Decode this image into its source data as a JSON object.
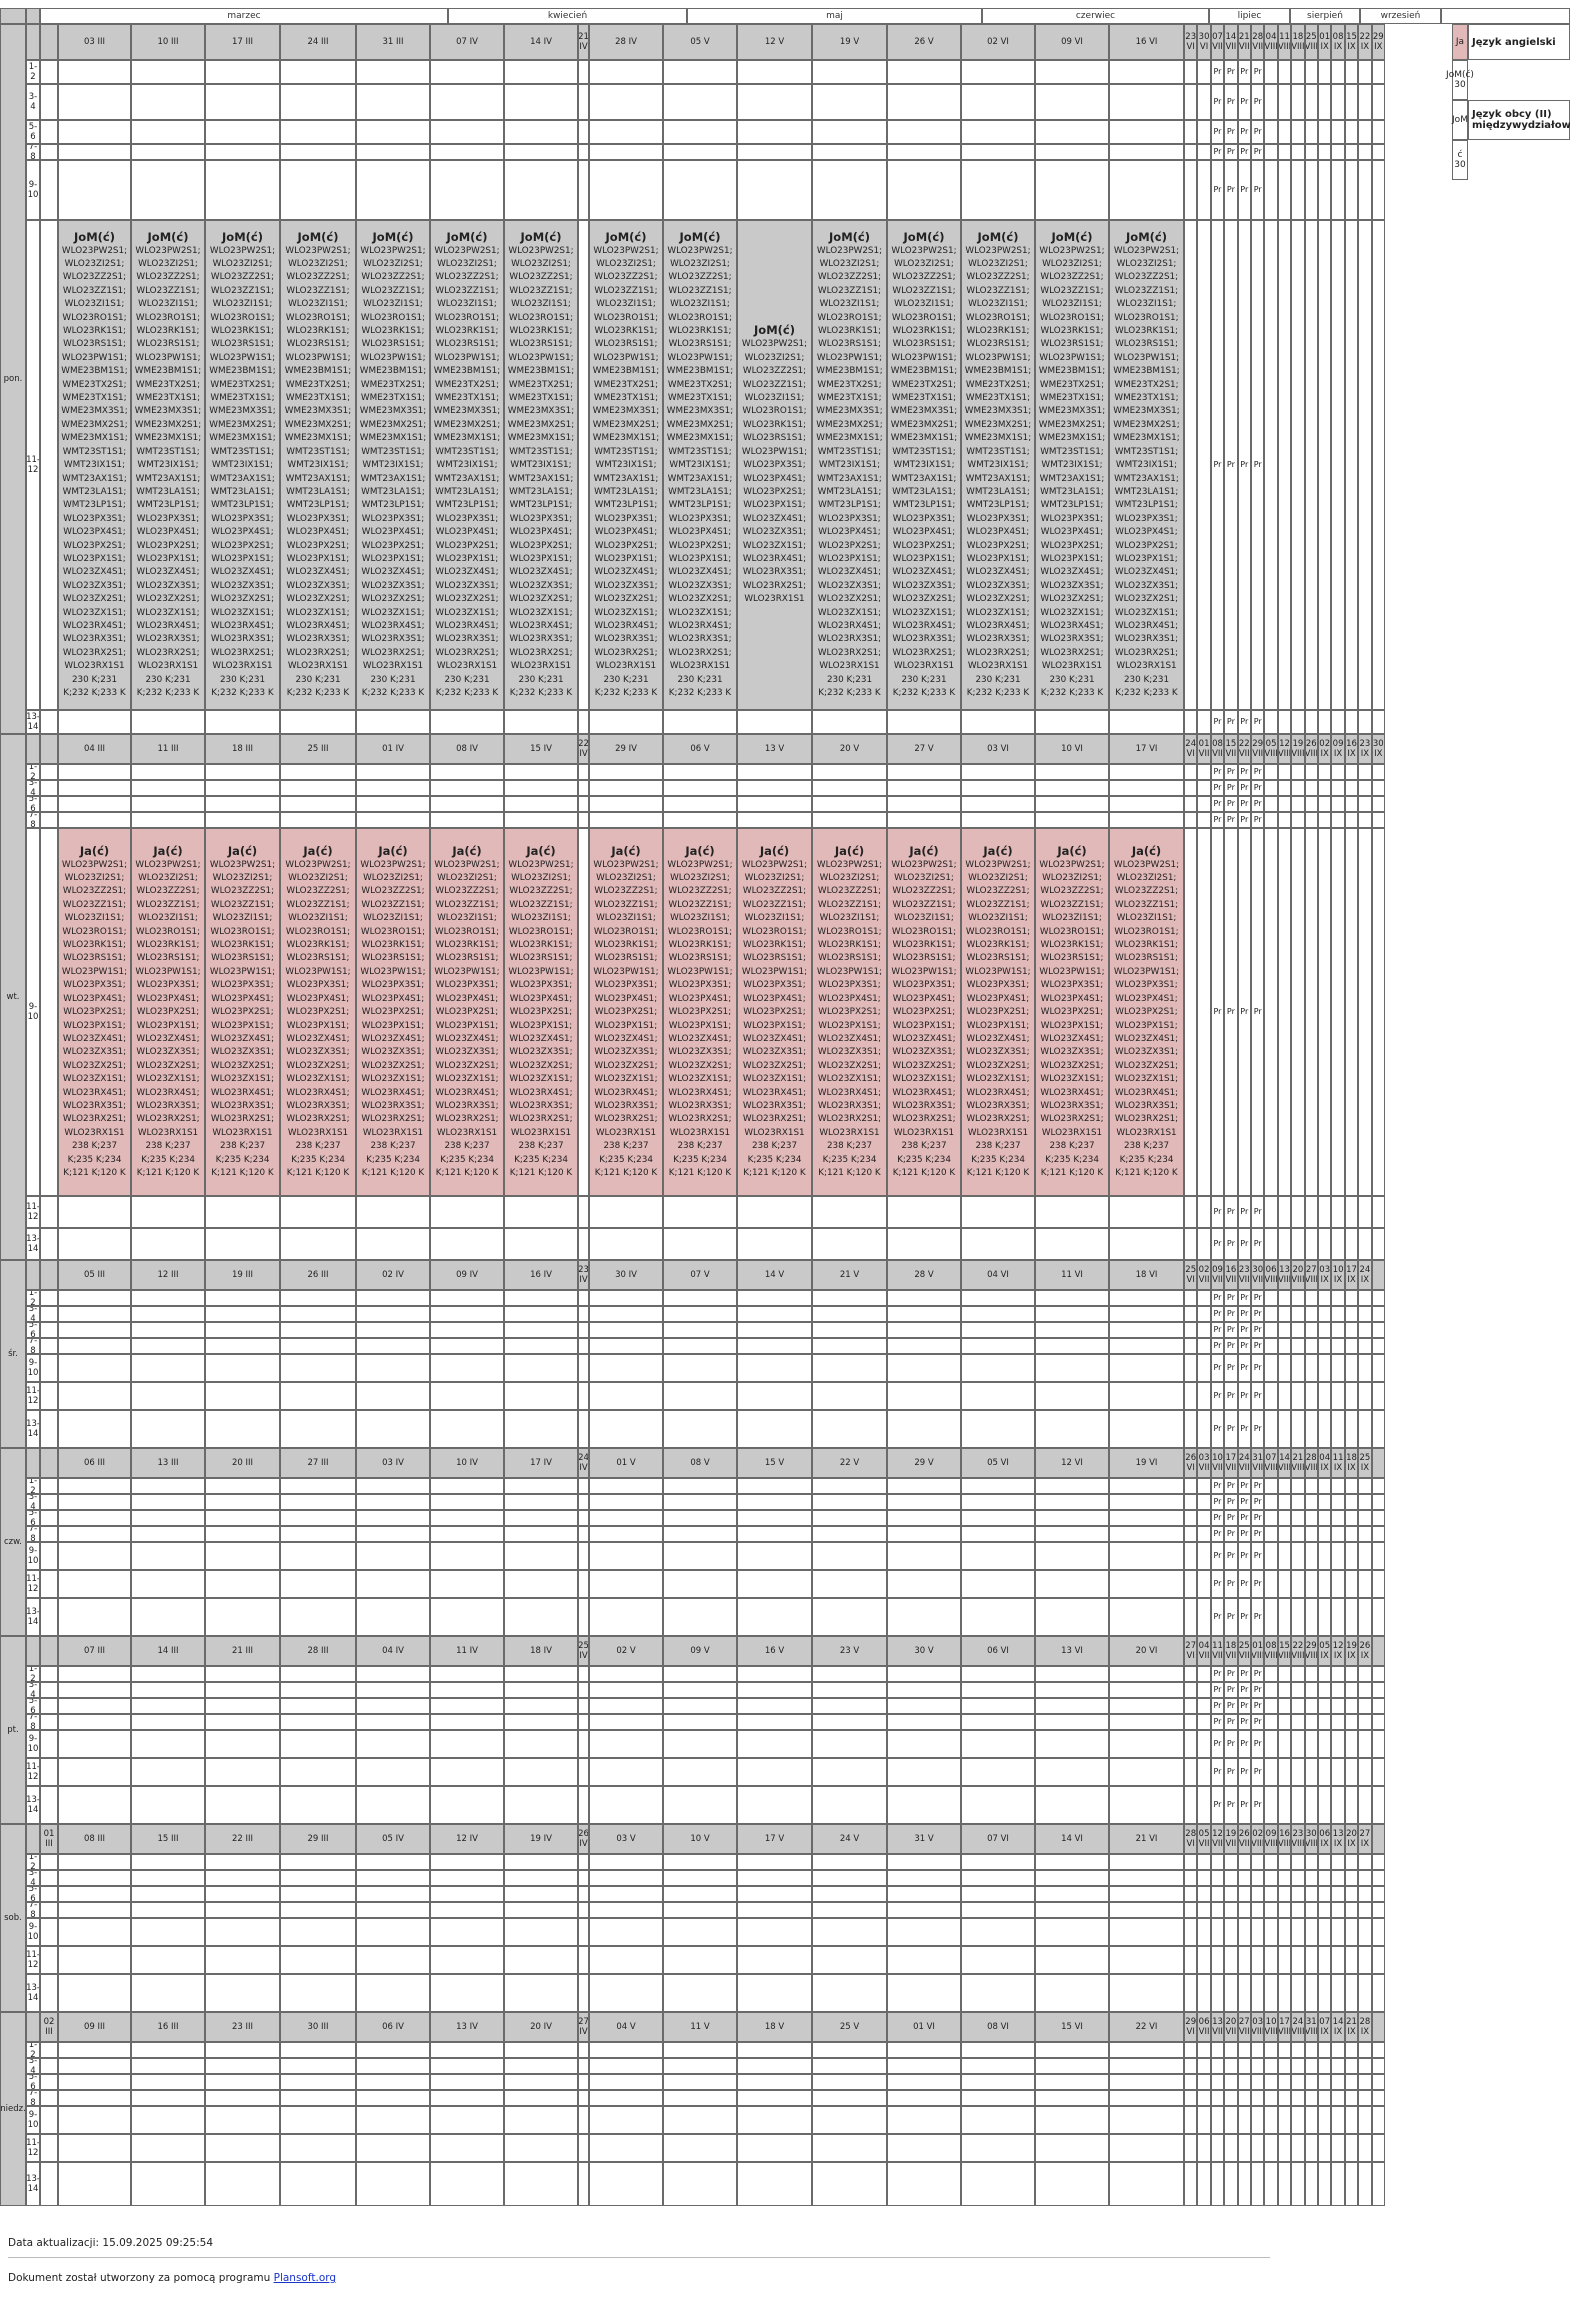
{
  "months": [
    "marzec",
    "kwiecień",
    "maj",
    "czerwiec",
    "lipiec",
    "sierpień",
    "wrzesień"
  ],
  "day_labels": [
    "pon.",
    "wt.",
    "śr.",
    "czw.",
    "pt.",
    "sob.",
    "niedz."
  ],
  "slot_labels": [
    "1-2",
    "3-4",
    "5-6",
    "7-8",
    "9-10",
    "11-12",
    "13-14"
  ],
  "days": [
    {
      "main": [
        "03 III",
        "10 III",
        "17 III",
        "24 III",
        "31 III",
        "07 IV",
        "14 IV",
        "21 IV",
        "28 IV",
        "05 V",
        "12 V",
        "19 V",
        "26 V",
        "02 VI",
        "09 VI",
        "16 VI"
      ],
      "summer": [
        "23 VI",
        "30 VI",
        "07 VII",
        "14 VII",
        "21 VII",
        "28 VII",
        "04 VIII",
        "11 VIII",
        "18 VIII",
        "25 VIII",
        "01 IX",
        "08 IX",
        "15 IX",
        "22 IX",
        "29 IX"
      ]
    },
    {
      "main": [
        "04 III",
        "11 III",
        "18 III",
        "25 III",
        "01 IV",
        "08 IV",
        "15 IV",
        "22 IV",
        "29 IV",
        "06 V",
        "13 V",
        "20 V",
        "27 V",
        "03 VI",
        "10 VI",
        "17 VI"
      ],
      "summer": [
        "24 VI",
        "01 VII",
        "08 VII",
        "15 VII",
        "22 VII",
        "29 VII",
        "05 VIII",
        "12 VIII",
        "19 VIII",
        "26 VIII",
        "02 IX",
        "09 IX",
        "16 IX",
        "23 IX",
        "30 IX"
      ]
    },
    {
      "main": [
        "05 III",
        "12 III",
        "19 III",
        "26 III",
        "02 IV",
        "09 IV",
        "16 IV",
        "23 IV",
        "30 IV",
        "07 V",
        "14 V",
        "21 V",
        "28 V",
        "04 VI",
        "11 VI",
        "18 VI"
      ],
      "summer": [
        "25 VI",
        "02 VII",
        "09 VII",
        "16 VII",
        "23 VII",
        "30 VII",
        "06 VIII",
        "13 VIII",
        "20 VIII",
        "27 VIII",
        "03 IX",
        "10 IX",
        "17 IX",
        "24 IX"
      ]
    },
    {
      "main": [
        "06 III",
        "13 III",
        "20 III",
        "27 III",
        "03 IV",
        "10 IV",
        "17 IV",
        "24 IV",
        "01 V",
        "08 V",
        "15 V",
        "22 V",
        "29 V",
        "05 VI",
        "12 VI",
        "19 VI"
      ],
      "summer": [
        "26 VI",
        "03 VII",
        "10 VII",
        "17 VII",
        "24 VII",
        "31 VII",
        "07 VIII",
        "14 VIII",
        "21 VIII",
        "28 VIII",
        "04 IX",
        "11 IX",
        "18 IX",
        "25 IX"
      ]
    },
    {
      "main": [
        "07 III",
        "14 III",
        "21 III",
        "28 III",
        "04 IV",
        "11 IV",
        "18 IV",
        "25 IV",
        "02 V",
        "09 V",
        "16 V",
        "23 V",
        "30 V",
        "06 VI",
        "13 VI",
        "20 VI"
      ],
      "summer": [
        "27 VI",
        "04 VII",
        "11 VII",
        "18 VII",
        "25 VII",
        "01 VIII",
        "08 VIII",
        "15 VIII",
        "22 VIII",
        "29 VIII",
        "05 IX",
        "12 IX",
        "19 IX",
        "26 IX"
      ]
    },
    {
      "lead": "01 III",
      "main": [
        "08 III",
        "15 III",
        "22 III",
        "29 III",
        "05 IV",
        "12 IV",
        "19 IV",
        "26 IV",
        "03 V",
        "10 V",
        "17 V",
        "24 V",
        "31 V",
        "07 VI",
        "14 VI",
        "21 VI"
      ],
      "summer": [
        "28 VI",
        "05 VII",
        "12 VII",
        "19 VII",
        "26 VII",
        "02 VIII",
        "09 VIII",
        "16 VIII",
        "23 VIII",
        "30 VIII",
        "06 IX",
        "13 IX",
        "20 IX",
        "27 IX"
      ]
    },
    {
      "lead": "02 III",
      "main": [
        "09 III",
        "16 III",
        "23 III",
        "30 III",
        "06 IV",
        "13 IV",
        "20 IV",
        "27 IV",
        "04 V",
        "11 V",
        "18 V",
        "25 V",
        "01 VI",
        "08 VI",
        "15 VI",
        "22 VI"
      ],
      "summer": [
        "29 VI",
        "06 VII",
        "13 VII",
        "20 VII",
        "27 VII",
        "03 VIII",
        "10 VIII",
        "17 VIII",
        "24 VIII",
        "31 VIII",
        "07 IX",
        "14 IX",
        "21 IX",
        "28 IX"
      ]
    }
  ],
  "pr_label": "Pr",
  "lessons": {
    "jom": {
      "title": "JoM(ć)",
      "groups": [
        "WLO23PW2S1;",
        "WLO23ZI2S1;",
        "WLO23ZZ2S1;",
        "WLO23ZZ1S1;",
        "WLO23ZI1S1;",
        "WLO23RO1S1;",
        "WLO23RK1S1;",
        "WLO23RS1S1;",
        "WLO23PW1S1;",
        "WME23BM1S1;",
        "WME23TX2S1;",
        "WME23TX1S1;",
        "WME23MX3S1;",
        "WME23MX2S1;",
        "WME23MX1S1;",
        "WMT23ST1S1;",
        "WMT23IX1S1;",
        "WMT23AX1S1;",
        "WMT23LA1S1;",
        "WMT23LP1S1;",
        "WLO23PX3S1;",
        "WLO23PX4S1;",
        "WLO23PX2S1;",
        "WLO23PX1S1;",
        "WLO23ZX4S1;",
        "WLO23ZX3S1;",
        "WLO23ZX2S1;",
        "WLO23ZX1S1;",
        "WLO23RX4S1;",
        "WLO23RX3S1;",
        "WLO23RX2S1;",
        "WLO23RX1S1"
      ],
      "rooms": [
        "230 K;231 K;232 K;233 K"
      ],
      "short_groups": [
        "WLO23PW2S1;",
        "WLO23ZI2S1;",
        "WLO23ZZ2S1;",
        "WLO23ZZ1S1;",
        "WLO23ZI1S1;",
        "WLO23RO1S1;",
        "WLO23RK1S1;",
        "WLO23RS1S1;",
        "WLO23PW1S1;",
        "WLO23PX3S1;",
        "WLO23PX4S1;",
        "WLO23PX2S1;",
        "WLO23PX1S1;",
        "WLO23ZX4S1;",
        "WLO23ZX3S1;",
        "WLO23ZX1S1;",
        "WLO23RX4S1;",
        "WLO23RX3S1;",
        "WLO23RX2S1;",
        "WLO23RX1S1"
      ]
    },
    "ja": {
      "title": "Ja(ć)",
      "groups": [
        "WLO23PW2S1;",
        "WLO23ZI2S1;",
        "WLO23ZZ2S1;",
        "WLO23ZZ1S1;",
        "WLO23ZI1S1;",
        "WLO23RO1S1;",
        "WLO23RK1S1;",
        "WLO23RS1S1;",
        "WLO23PW1S1;",
        "WLO23PX3S1;",
        "WLO23PX4S1;",
        "WLO23PX2S1;",
        "WLO23PX1S1;",
        "WLO23ZX4S1;",
        "WLO23ZX3S1;",
        "WLO23ZX2S1;",
        "WLO23ZX1S1;",
        "WLO23RX4S1;",
        "WLO23RX3S1;",
        "WLO23RX2S1;",
        "WLO23RX1S1"
      ],
      "rooms": [
        "238 K;237 K;235 K;234 K;121 K;120 K"
      ]
    }
  },
  "legend": [
    {
      "code": "Ja",
      "name": "Język angielski",
      "color": "#e2b9b9"
    },
    {
      "code": "JoM(ć) 30",
      "name": "",
      "color": "#ffffff"
    },
    {
      "code": "JoM",
      "name": "Język obcy (II) międzywydziałowy",
      "color": "#ffffff"
    },
    {
      "code": "ć 30",
      "name": "",
      "color": "#ffffff"
    }
  ],
  "footer": {
    "updated": "Data aktualizacji: 15.09.2025 09:25:54",
    "made_with": "Dokument został utworzony za pomocą programu ",
    "link": "Plansoft.org"
  }
}
